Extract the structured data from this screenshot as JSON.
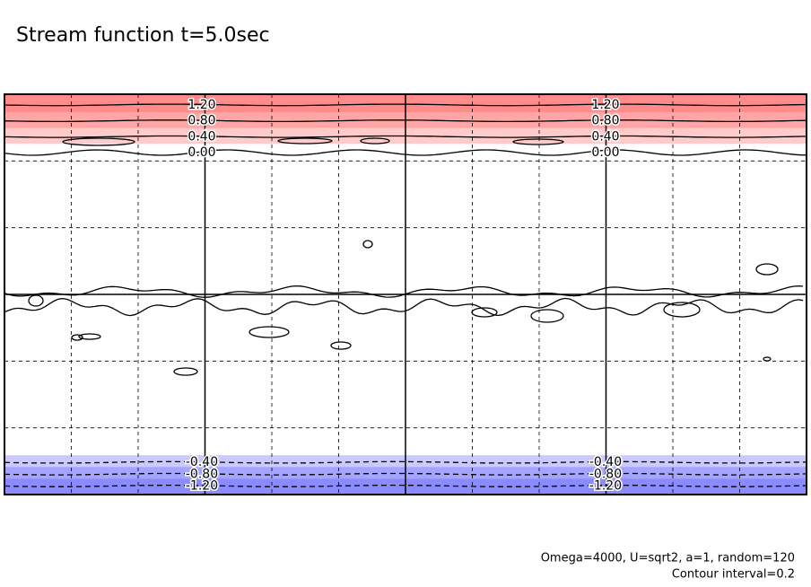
{
  "chart_data": {
    "type": "contour",
    "title": "Stream function t=5.0sec",
    "notes": [
      "Omega=4000, U=sqrt2, a=1, random=120",
      "Contour interval=0.2"
    ],
    "levels": [
      {
        "value": 1.2,
        "label": "1.20"
      },
      {
        "value": 0.8,
        "label": "0.80"
      },
      {
        "value": 0.4,
        "label": "0.40"
      },
      {
        "value": 0,
        "label": "0.00"
      },
      {
        "value": -0.4,
        "label": "-0.40"
      },
      {
        "value": -0.8,
        "label": "-0.80"
      },
      {
        "value": -1.2,
        "label": "-1.20"
      }
    ],
    "positive_color": "#ff5050",
    "negative_color": "#5050ff",
    "grid": true
  }
}
